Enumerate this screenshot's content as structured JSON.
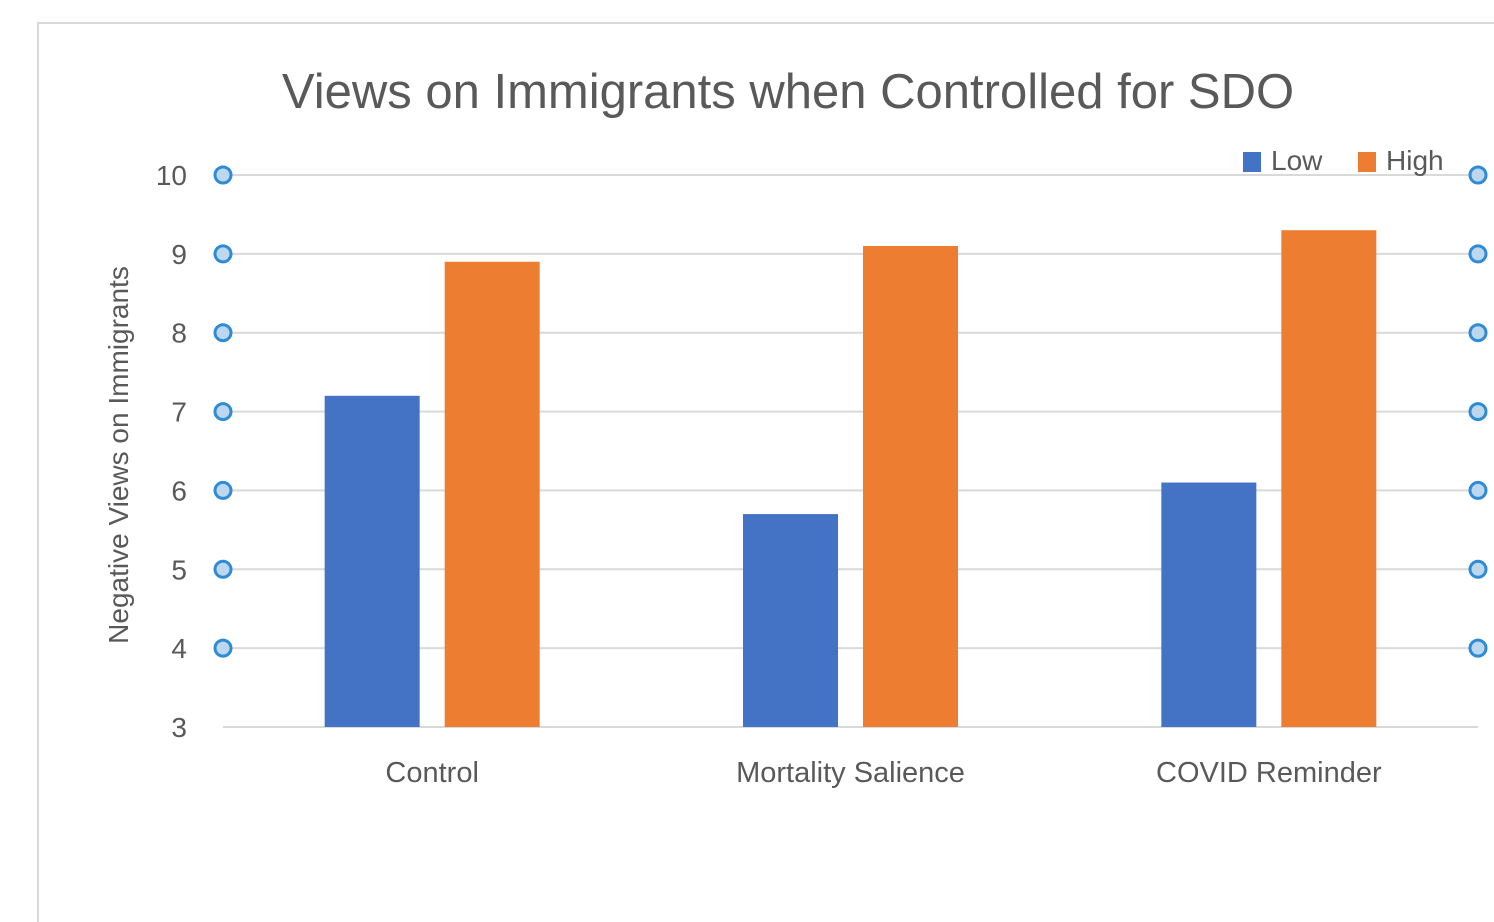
{
  "chart_data": {
    "type": "bar",
    "title": "Views on Immigrants when Controlled for SDO",
    "xlabel": "",
    "ylabel": "Negative Views on Immigrants",
    "categories": [
      "Control",
      "Mortality Salience",
      "COVID Reminder"
    ],
    "series": [
      {
        "name": "Low",
        "color": "#4472c4",
        "values": [
          7.2,
          5.7,
          6.1
        ]
      },
      {
        "name": "High",
        "color": "#ed7d31",
        "values": [
          8.9,
          9.1,
          9.3
        ]
      }
    ],
    "ylim": [
      3,
      10
    ],
    "yticks": [
      "3",
      "4",
      "5",
      "6",
      "7",
      "8",
      "9",
      "10"
    ],
    "grid": true,
    "legend_position": "top-right"
  }
}
